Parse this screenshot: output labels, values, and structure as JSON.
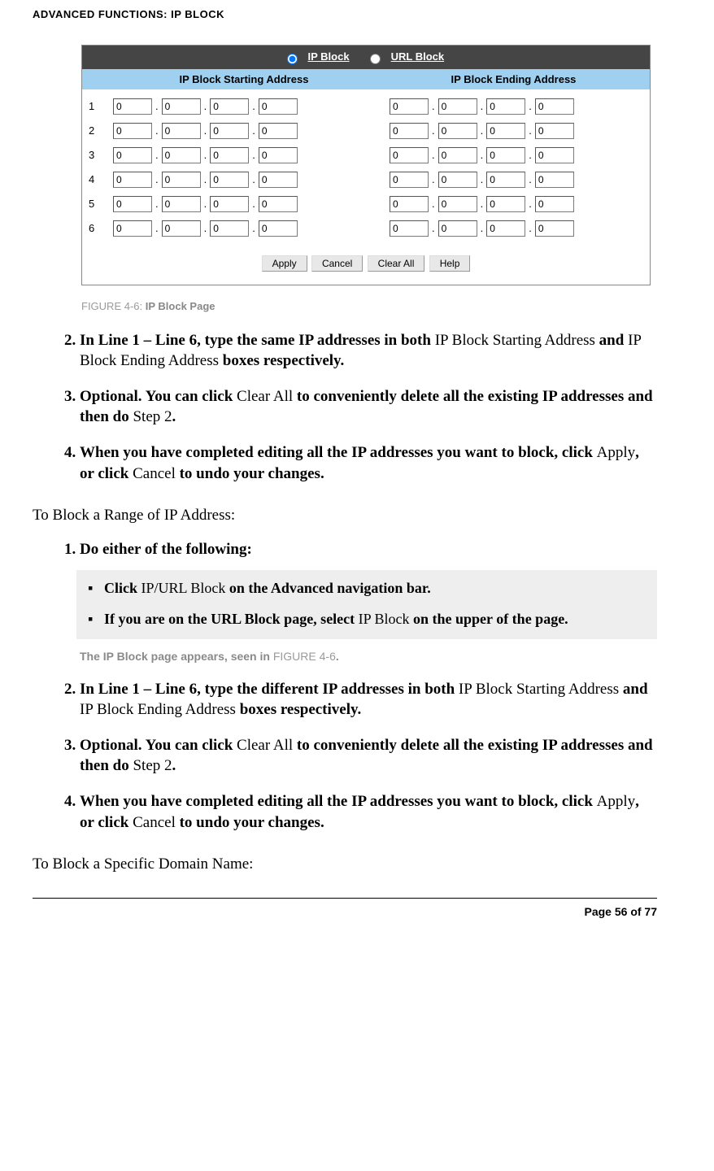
{
  "header": "ADVANCED FUNCTIONS: IP BLOCK",
  "radio": {
    "ip": "IP Block",
    "url": "URL Block"
  },
  "cols": {
    "start": "IP Block Starting Address",
    "end": "IP Block Ending Address"
  },
  "rowNums": [
    "1",
    "2",
    "3",
    "4",
    "5",
    "6"
  ],
  "octet": "0",
  "buttons": {
    "apply": "Apply",
    "cancel": "Cancel",
    "clear": "Clear All",
    "help": "Help"
  },
  "figCaption": {
    "pre": "FIGURE 4-6: ",
    "name": "IP Block Page"
  },
  "instrA": {
    "i2a": "In Line 1 – Line 6, type the same IP addresses in both ",
    "i2b": "IP Block Starting Address ",
    "i2c": "and ",
    "i2d": "IP Block Ending Address ",
    "i2e": "boxes respectively.",
    "i3a": "Optional. You can click ",
    "i3b": "Clear All ",
    "i3c": "to conveniently delete all the existing IP addresses and then do ",
    "i3d": "Step 2",
    "i3e": ".",
    "i4a": "When you have completed editing all the IP addresses you want to block, click ",
    "i4b": "Apply",
    "i4c": ", or click ",
    "i4d": "Cancel ",
    "i4e": "to undo your changes."
  },
  "sectionB": "To Block a Range of IP Address:",
  "instrB": {
    "i1": "Do either of the following:",
    "sub1a": "Click ",
    "sub1b": "IP/URL Block ",
    "sub1c": "on the Advanced navigation bar.",
    "sub2a": "If you are on the URL Block page, select ",
    "sub2b": "IP Block ",
    "sub2c": "on the upper of the page.",
    "noteA": "The IP Block page appears, seen in ",
    "noteB": "FIGURE 4-6",
    "noteC": ".",
    "i2a": "In Line 1 – Line 6, type the different IP addresses in both ",
    "i2b": "IP Block Starting Address ",
    "i2c": "and ",
    "i2d": "IP Block Ending Address ",
    "i2e": "boxes respectively.",
    "i3a": "Optional. You can click ",
    "i3b": "Clear All ",
    "i3c": "to conveniently delete all the existing IP addresses and then do ",
    "i3d": "Step 2",
    "i3e": ".",
    "i4a": "When you have completed editing all the IP addresses you want to block, click ",
    "i4b": "Apply",
    "i4c": ", or click ",
    "i4d": "Cancel ",
    "i4e": "to undo your changes."
  },
  "sectionC": "To Block a Specific Domain Name:",
  "footer": "Page 56 of 77"
}
